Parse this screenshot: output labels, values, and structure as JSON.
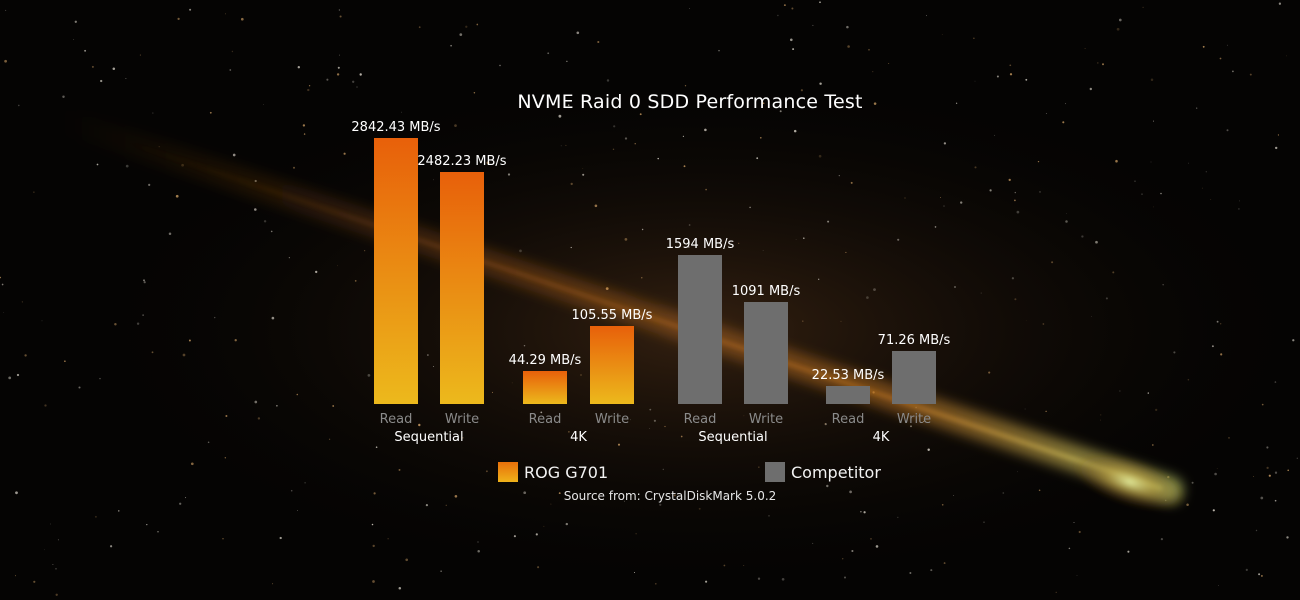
{
  "chart_data": {
    "type": "bar",
    "title": "NVME Raid 0 SDD Performance Test",
    "unit": "MB/s",
    "groups": [
      {
        "series": "ROG G701",
        "color": "#ee7a0c",
        "color_top": "#e8600a",
        "color_bottom": "#ecb91c",
        "subgroups": [
          {
            "label": "Sequential",
            "bars": [
              {
                "label": "Read",
                "value": 2842.43,
                "value_label": "2842.43 MB/s"
              },
              {
                "label": "Write",
                "value": 2482.23,
                "value_label": "2482.23 MB/s"
              }
            ]
          },
          {
            "label": "4K",
            "bars": [
              {
                "label": "Read",
                "value": 44.29,
                "value_label": "44.29 MB/s"
              },
              {
                "label": "Write",
                "value": 105.55,
                "value_label": "105.55 MB/s"
              }
            ]
          }
        ]
      },
      {
        "series": "Competitor",
        "color": "#6e6e6e",
        "subgroups": [
          {
            "label": "Sequential",
            "bars": [
              {
                "label": "Read",
                "value": 1594,
                "value_label": "1594 MB/s"
              },
              {
                "label": "Write",
                "value": 1091,
                "value_label": "1091 MB/s"
              }
            ]
          },
          {
            "label": "4K",
            "bars": [
              {
                "label": "Read",
                "value": 22.53,
                "value_label": "22.53 MB/s"
              },
              {
                "label": "Write",
                "value": 71.26,
                "value_label": "71.26 MB/s"
              }
            ]
          }
        ]
      }
    ],
    "legend": [
      {
        "name": "ROG G701",
        "color": "#ee8a10"
      },
      {
        "name": "Competitor",
        "color": "#6e6e6e"
      }
    ],
    "note": "Source from: CrystalDiskMark 5.0.2"
  }
}
